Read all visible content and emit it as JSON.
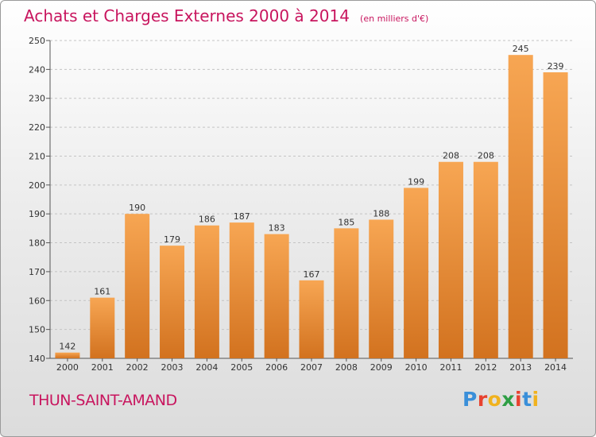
{
  "chart_data": {
    "type": "bar",
    "title": "Achats et Charges Externes 2000 à 2014",
    "unit_note": "(en milliers d'€)",
    "categories": [
      "2000",
      "2001",
      "2002",
      "2003",
      "2004",
      "2005",
      "2006",
      "2007",
      "2008",
      "2009",
      "2010",
      "2011",
      "2012",
      "2013",
      "2014"
    ],
    "values": [
      142,
      161,
      190,
      179,
      186,
      187,
      183,
      167,
      185,
      188,
      199,
      208,
      208,
      245,
      239
    ],
    "ylim": [
      140,
      250
    ],
    "yticks": [
      140,
      150,
      160,
      170,
      180,
      190,
      200,
      210,
      220,
      230,
      240,
      250
    ],
    "grid": true,
    "bar_color_top": "#f7a653",
    "bar_color_bottom": "#d2721f"
  },
  "footer": {
    "place": "THUN-SAINT-AMAND",
    "logo_letters": [
      "P",
      "r",
      "o",
      "x",
      "i",
      "t",
      "i"
    ],
    "logo_colors": [
      "#3a8fd9",
      "#e8422f",
      "#f0b21e",
      "#2e9e44",
      "#e8422f",
      "#3a8fd9",
      "#f0b21e"
    ]
  }
}
